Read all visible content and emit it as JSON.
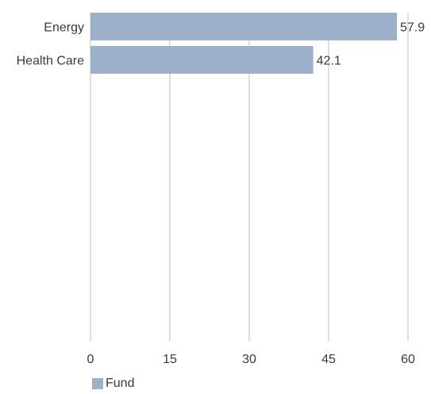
{
  "chart_data": {
    "type": "bar",
    "orientation": "horizontal",
    "categories": [
      "Energy",
      "Health Care"
    ],
    "series": [
      {
        "name": "Fund",
        "values": [
          57.9,
          42.1
        ],
        "color": "#9cb0ca"
      }
    ],
    "data_labels": [
      "57.9",
      "42.1"
    ],
    "xlim": [
      0,
      60
    ],
    "x_ticks": [
      0,
      15,
      30,
      45,
      60
    ],
    "x_tick_labels": [
      "0",
      "15",
      "30",
      "45",
      "60"
    ],
    "grid": true,
    "gridline_color": "#bfbfbf",
    "legend_position": "bottom-left"
  }
}
